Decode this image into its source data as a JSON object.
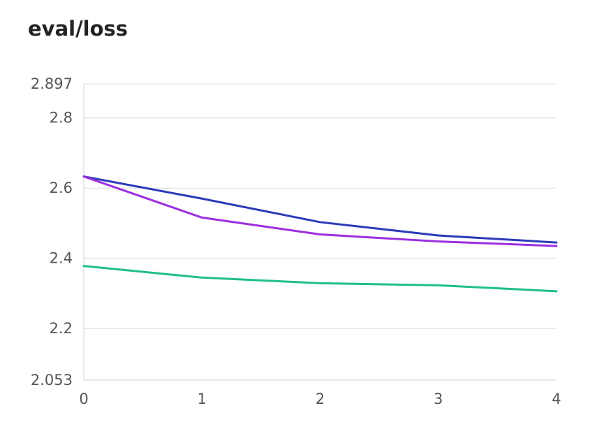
{
  "chart_data": {
    "type": "line",
    "title": "eval/loss",
    "xlabel": "",
    "ylabel": "",
    "x": [
      0,
      1,
      2,
      3,
      4
    ],
    "xlim": [
      0,
      4
    ],
    "ylim": [
      2.053,
      2.897
    ],
    "x_ticks": [
      "0",
      "1",
      "2",
      "3",
      "4"
    ],
    "y_ticks": [
      "2.053",
      "2.2",
      "2.4",
      "2.6",
      "2.8",
      "2.897"
    ],
    "y_tick_values": [
      2.053,
      2.2,
      2.4,
      2.6,
      2.8,
      2.897
    ],
    "grid": true,
    "legend": "none",
    "series": [
      {
        "color": "#2a3bb8",
        "values": [
          2.633,
          2.57,
          2.503,
          2.465,
          2.445
        ]
      },
      {
        "color": "#9b2fe0",
        "values": [
          2.633,
          2.516,
          2.468,
          2.448,
          2.435
        ]
      },
      {
        "color": "#1fbf85",
        "values": [
          2.378,
          2.345,
          2.329,
          2.323,
          2.306
        ]
      }
    ]
  }
}
